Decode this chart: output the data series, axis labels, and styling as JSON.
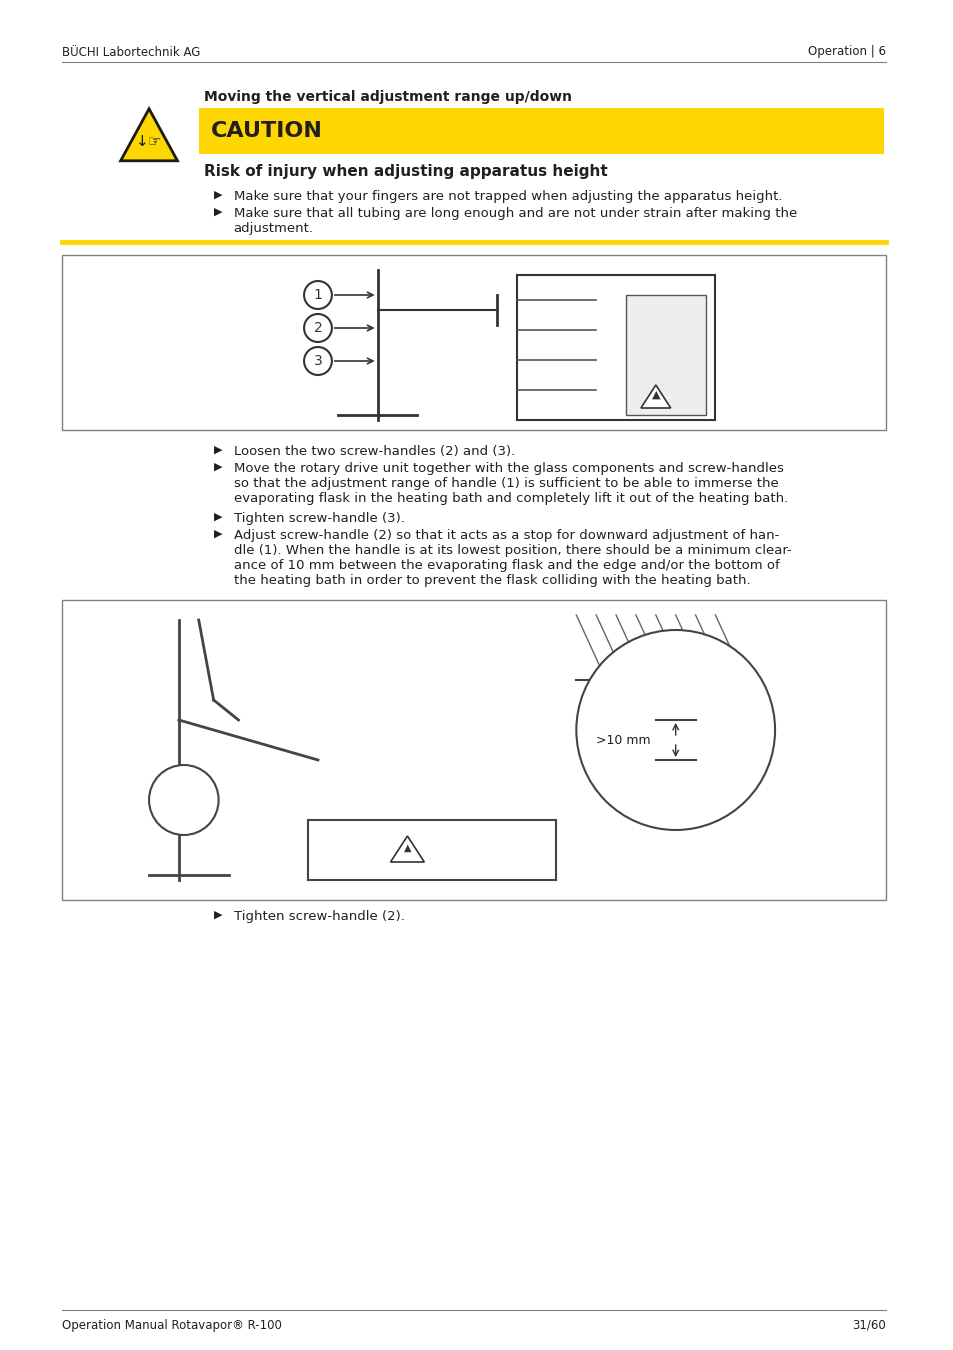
{
  "header_left": "BÜCHI Labortechnik AG",
  "header_right": "Operation | 6",
  "footer_left": "Operation Manual Rotavapor® R-100",
  "footer_right": "31/60",
  "section_title": "Moving the vertical adjustment range up/down",
  "caution_label": "CAUTION",
  "caution_bg": "#FFD700",
  "risk_title": "Risk of injury when adjusting apparatus height",
  "bullet1": "Make sure that your fingers are not trapped when adjusting the apparatus height.",
  "bullet2_line1": "Make sure that all tubing are long enough and are not under strain after making the",
  "bullet2_line2": "adjustment.",
  "instruction_bullets": [
    "Loosen the two screw-handles (2) and (3).",
    "Move the rotary drive unit together with the glass components and screw-handles\nso that the adjustment range of handle (1) is sufficient to be able to immerse the\nevaporating flask in the heating bath and completely lift it out of the heating bath.",
    "Tighten screw-handle (3).",
    "Adjust screw-handle (2) so that it acts as a stop for downward adjustment of han-\ndle (1). When the handle is at its lowest position, there should be a minimum clear-\nance of 10 mm between the evaporating flask and the edge and/or the bottom of\nthe heating bath in order to prevent the flask colliding with the heating bath."
  ],
  "final_bullet": "Tighten screw-handle (2).",
  "bg_color": "#FFFFFF",
  "text_color": "#231F20",
  "header_line_color": "#808080",
  "caution_separator_color": "#FFD700",
  "diagram1_caption": "",
  "diagram2_caption": ">10 mm"
}
